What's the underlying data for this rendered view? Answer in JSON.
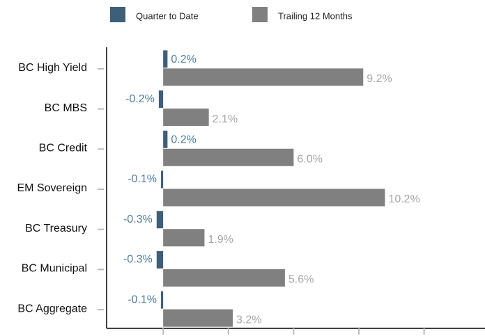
{
  "chart_data": {
    "type": "hbar",
    "categories": [
      "BC High Yield",
      "BC MBS",
      "BC Credit",
      "EM Sovereign",
      "BC Treasury",
      "BC Municipal",
      "BC Aggregate"
    ],
    "series": [
      {
        "name": "Quarter to Date",
        "color": "#3e5f78",
        "label_color": "#4f7d9c",
        "values": [
          0.2,
          -0.2,
          0.2,
          -0.1,
          -0.3,
          -0.3,
          -0.1
        ],
        "value_labels": [
          "0.2%",
          "-0.2%",
          "0.2%",
          "-0.1%",
          "-0.3%",
          "-0.3%",
          "-0.1%"
        ]
      },
      {
        "name": "Trailing 12 Months",
        "color": "#808080",
        "label_color": "#a6a6a6",
        "values": [
          9.2,
          2.1,
          6.0,
          10.2,
          1.9,
          5.6,
          3.2
        ],
        "value_labels": [
          "9.2%",
          "2.1%",
          "6.0%",
          "10.2%",
          "1.9%",
          "5.6%",
          "3.2%"
        ]
      }
    ],
    "xlim": [
      -2.6,
      14.8
    ],
    "xticks": [
      0,
      3,
      6,
      9,
      12
    ]
  }
}
